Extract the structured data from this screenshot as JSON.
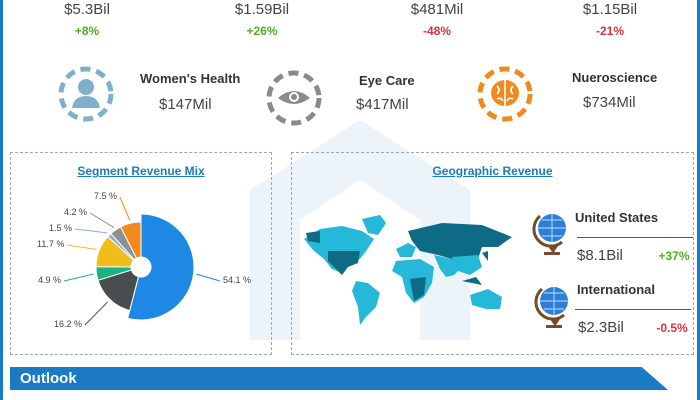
{
  "top_metrics": [
    {
      "value": "$5.3Bil",
      "change": "+8%",
      "trend": "up"
    },
    {
      "value": "$1.59Bil",
      "change": "+26%",
      "trend": "up"
    },
    {
      "value": "$481Mil",
      "change": "-48%",
      "trend": "down"
    },
    {
      "value": "$1.15Bil",
      "change": "-21%",
      "trend": "down"
    }
  ],
  "segments": [
    {
      "label": "Women's Health",
      "value": "$147Mil",
      "icon": "woman-icon",
      "color": "#7fb0c9"
    },
    {
      "label": "Eye Care",
      "value": "$417Mil",
      "icon": "eye-icon",
      "color": "#8a8a8a"
    },
    {
      "label": "Nueroscience",
      "value": "$734Mil",
      "icon": "brain-icon",
      "color": "#f08a1c"
    }
  ],
  "segment_mix": {
    "title": "Segment Revenue Mix",
    "chart_data": {
      "type": "pie",
      "values": [
        54.1,
        16.2,
        4.9,
        11.7,
        1.5,
        4.2,
        7.5
      ],
      "labels": [
        "54.1 %",
        "16.2 %",
        "4.9 %",
        "11.7 %",
        "1.5 %",
        "4.2 %",
        "7.5 %"
      ],
      "colors": [
        "#1e88e5",
        "#4a4d4f",
        "#1bb380",
        "#f2bc1b",
        "#7fb0d6",
        "#8c9191",
        "#f08a1c"
      ]
    }
  },
  "geographic": {
    "title": "Geographic Revenue",
    "regions": [
      {
        "name": "United States",
        "value": "$8.1Bil",
        "change": "+37%",
        "trend": "up"
      },
      {
        "name": "International",
        "value": "$2.3Bil",
        "change": "-0.5%",
        "trend": "down"
      }
    ]
  },
  "outlook": {
    "label": "Outlook"
  }
}
